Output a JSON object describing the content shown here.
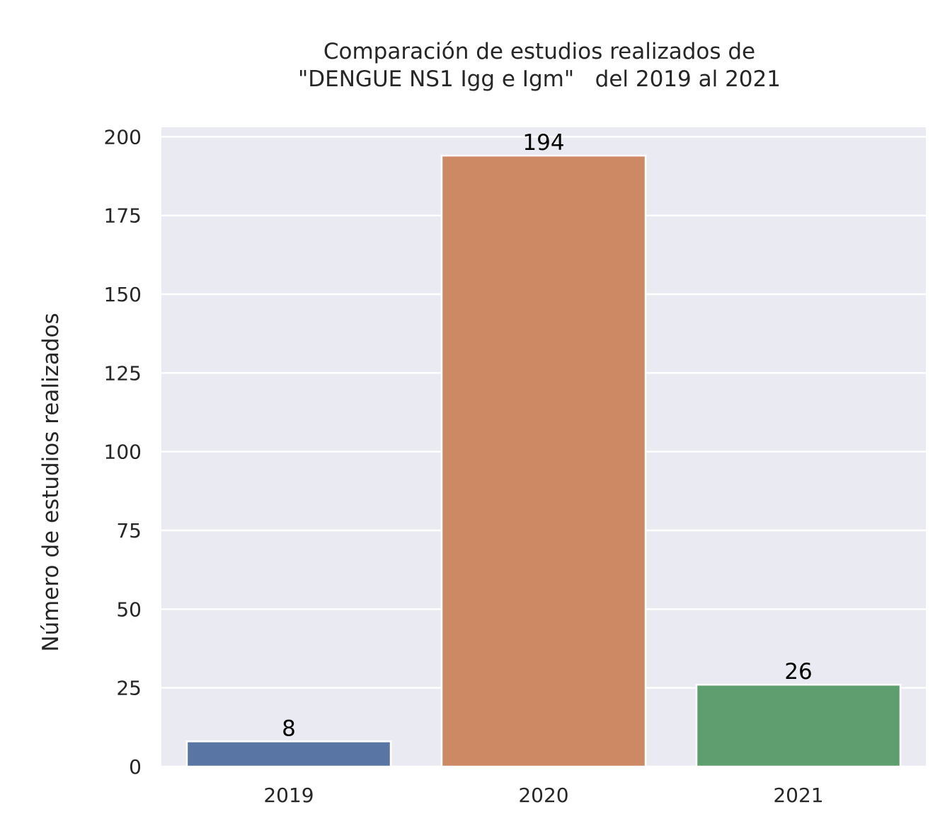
{
  "chart_data": {
    "type": "bar",
    "title_lines": [
      "Comparación de estudios realizados de",
      "\"DENGUE NS1 Igg e Igm\"   del 2019 al 2021"
    ],
    "xlabel": "",
    "ylabel": "Número de estudios realizados",
    "categories": [
      "2019",
      "2020",
      "2021"
    ],
    "values": [
      8,
      194,
      26
    ],
    "data_labels": [
      "8",
      "194",
      "26"
    ],
    "ylim": [
      0,
      203
    ],
    "yticks": [
      0,
      25,
      50,
      75,
      100,
      125,
      150,
      175,
      200
    ],
    "grid": true,
    "colors": [
      "#5875a4",
      "#cc8963",
      "#5f9e6e"
    ],
    "background": "#eaeaf2"
  }
}
